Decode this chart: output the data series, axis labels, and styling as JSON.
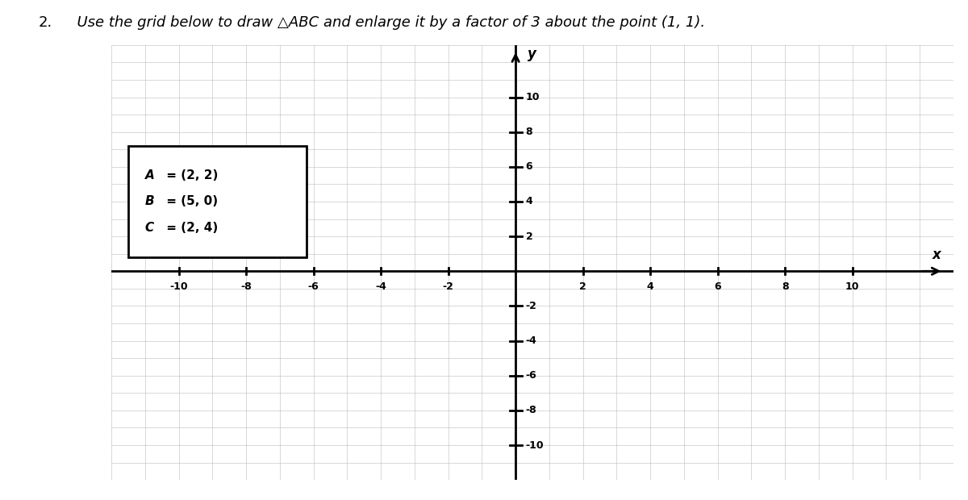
{
  "title_num": "2.",
  "title_text": "  Use the grid below to draw △ABC and enlarge it by a factor of 3 about the point (1, 1).",
  "annotation_lines": [
    "A = (2, 2)",
    "B = (5, 0)",
    "C = (2, 4)"
  ],
  "xlim": [
    -12,
    13
  ],
  "ylim": [
    -12,
    13
  ],
  "axis_label_x": "x",
  "axis_label_y": "y",
  "background_color": "#ffffff",
  "grid_color": "#bbbbbb",
  "axis_color": "#000000",
  "tick_positions": [
    -10,
    -8,
    -6,
    -4,
    -2,
    2,
    4,
    6,
    8,
    10
  ],
  "figure_width": 12.0,
  "figure_height": 6.2
}
